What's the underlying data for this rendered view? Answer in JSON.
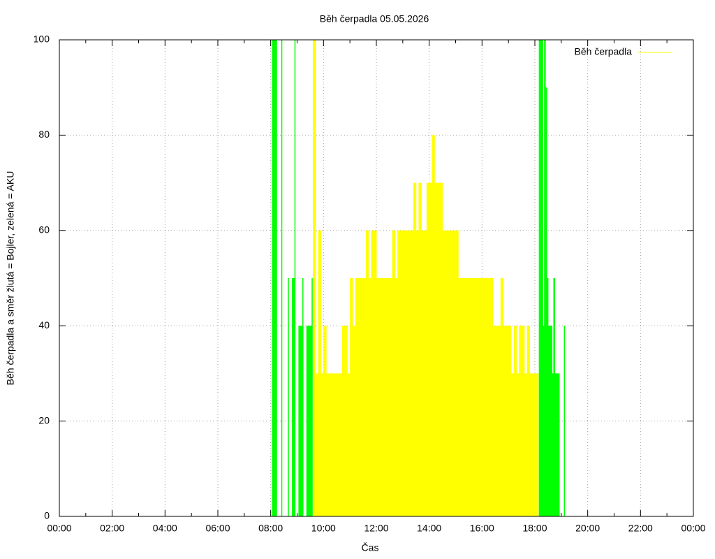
{
  "chart_data": {
    "type": "impulse",
    "title": "Běh čerpadla 05.05.2026",
    "x_label": "Čas",
    "y_label": "Běh čerpadla a směr žlutá = Bojler, zelená = AKU",
    "xlim": [
      0,
      24
    ],
    "ylim": [
      0,
      100
    ],
    "xticks": [
      {
        "value": 0,
        "label": "00:00"
      },
      {
        "value": 2,
        "label": "02:00"
      },
      {
        "value": 4,
        "label": "04:00"
      },
      {
        "value": 6,
        "label": "06:00"
      },
      {
        "value": 8,
        "label": "08:00"
      },
      {
        "value": 10,
        "label": "10:00"
      },
      {
        "value": 12,
        "label": "12:00"
      },
      {
        "value": 14,
        "label": "14:00"
      },
      {
        "value": 16,
        "label": "16:00"
      },
      {
        "value": 18,
        "label": "18:00"
      },
      {
        "value": 20,
        "label": "20:00"
      },
      {
        "value": 22,
        "label": "22:00"
      },
      {
        "value": 24,
        "label": "00:00"
      }
    ],
    "yticks": [
      0,
      20,
      40,
      60,
      80,
      100
    ],
    "grid": true,
    "legend": "top-right",
    "series": [
      {
        "color": "#00ff00",
        "x": [
          8.05,
          8.2,
          8.4,
          8.65,
          8.8,
          8.9,
          9.05,
          9.2,
          9.35,
          9.45,
          9.55,
          18.15,
          18.2,
          18.25,
          18.3,
          18.35,
          18.4,
          18.45,
          18.5,
          18.55,
          18.6,
          18.65,
          18.7,
          18.75,
          18.8,
          18.85,
          18.9,
          19.1
        ],
        "values": [
          100,
          100,
          100,
          50,
          50,
          100,
          40,
          50,
          40,
          40,
          50,
          100,
          100,
          100,
          40,
          100,
          90,
          50,
          40,
          40,
          40,
          30,
          50,
          30,
          30,
          30,
          30,
          40
        ]
      },
      {
        "name": "Běh čerpadla",
        "color": "#ffff00",
        "x": [
          9.6,
          9.7,
          9.8,
          9.9,
          10.0,
          10.1,
          10.2,
          10.3,
          10.4,
          10.5,
          10.6,
          10.7,
          10.8,
          10.9,
          11.0,
          11.1,
          11.2,
          11.3,
          11.4,
          11.5,
          11.6,
          11.7,
          11.8,
          11.9,
          12.0,
          12.1,
          12.2,
          12.3,
          12.4,
          12.5,
          12.6,
          12.7,
          12.8,
          12.9,
          13.0,
          13.1,
          13.2,
          13.3,
          13.4,
          13.5,
          13.6,
          13.7,
          13.8,
          13.9,
          14.0,
          14.1,
          14.2,
          14.3,
          14.4,
          14.5,
          14.6,
          14.7,
          14.8,
          14.9,
          15.0,
          15.1,
          15.2,
          15.3,
          15.4,
          15.5,
          15.6,
          15.7,
          15.8,
          15.9,
          16.0,
          16.1,
          16.2,
          16.3,
          16.4,
          16.5,
          16.6,
          16.7,
          16.8,
          16.9,
          17.0,
          17.1,
          17.2,
          17.3,
          17.4,
          17.5,
          17.6,
          17.7,
          17.8,
          17.9,
          18.0,
          18.1
        ],
        "values": [
          100,
          30,
          60,
          30,
          40,
          30,
          30,
          30,
          30,
          30,
          30,
          40,
          40,
          30,
          50,
          40,
          50,
          50,
          50,
          50,
          60,
          50,
          60,
          60,
          50,
          50,
          50,
          50,
          50,
          50,
          60,
          50,
          60,
          60,
          60,
          60,
          60,
          60,
          70,
          60,
          70,
          60,
          60,
          70,
          70,
          80,
          70,
          70,
          70,
          60,
          60,
          60,
          60,
          60,
          60,
          50,
          50,
          50,
          50,
          50,
          50,
          50,
          50,
          50,
          50,
          50,
          50,
          50,
          40,
          40,
          40,
          50,
          40,
          40,
          40,
          30,
          40,
          30,
          40,
          40,
          30,
          40,
          30,
          30,
          30,
          30
        ]
      }
    ]
  }
}
